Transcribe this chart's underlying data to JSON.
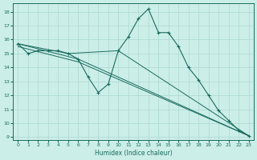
{
  "xlabel": "Humidex (Indice chaleur)",
  "background_color": "#cceee8",
  "grid_color": "#aad8d0",
  "line_color": "#1a6b5e",
  "xlim": [
    -0.5,
    23.5
  ],
  "ylim": [
    8.8,
    18.6
  ],
  "yticks": [
    9,
    10,
    11,
    12,
    13,
    14,
    15,
    16,
    17,
    18
  ],
  "xticks": [
    0,
    1,
    2,
    3,
    4,
    5,
    6,
    7,
    8,
    9,
    10,
    11,
    12,
    13,
    14,
    15,
    16,
    17,
    18,
    19,
    20,
    21,
    22,
    23
  ],
  "series_main": {
    "x": [
      0,
      1,
      2,
      3,
      4,
      5,
      6,
      7,
      8,
      9,
      10,
      11,
      12,
      13,
      14,
      15,
      16,
      17,
      18,
      19,
      20,
      21,
      22,
      23
    ],
    "y": [
      15.7,
      15.0,
      15.2,
      15.2,
      15.2,
      15.0,
      14.6,
      13.3,
      12.2,
      12.8,
      15.2,
      16.2,
      17.5,
      18.2,
      16.5,
      16.5,
      15.5,
      14.0,
      13.1,
      12.0,
      10.9,
      10.2,
      9.5,
      9.1
    ]
  },
  "series_lines": [
    {
      "x": [
        0,
        5,
        10,
        23
      ],
      "y": [
        15.7,
        15.0,
        15.2,
        9.1
      ]
    },
    {
      "x": [
        0,
        6,
        23
      ],
      "y": [
        15.7,
        14.6,
        9.1
      ]
    },
    {
      "x": [
        0,
        6,
        23
      ],
      "y": [
        15.5,
        14.4,
        9.1
      ]
    }
  ]
}
